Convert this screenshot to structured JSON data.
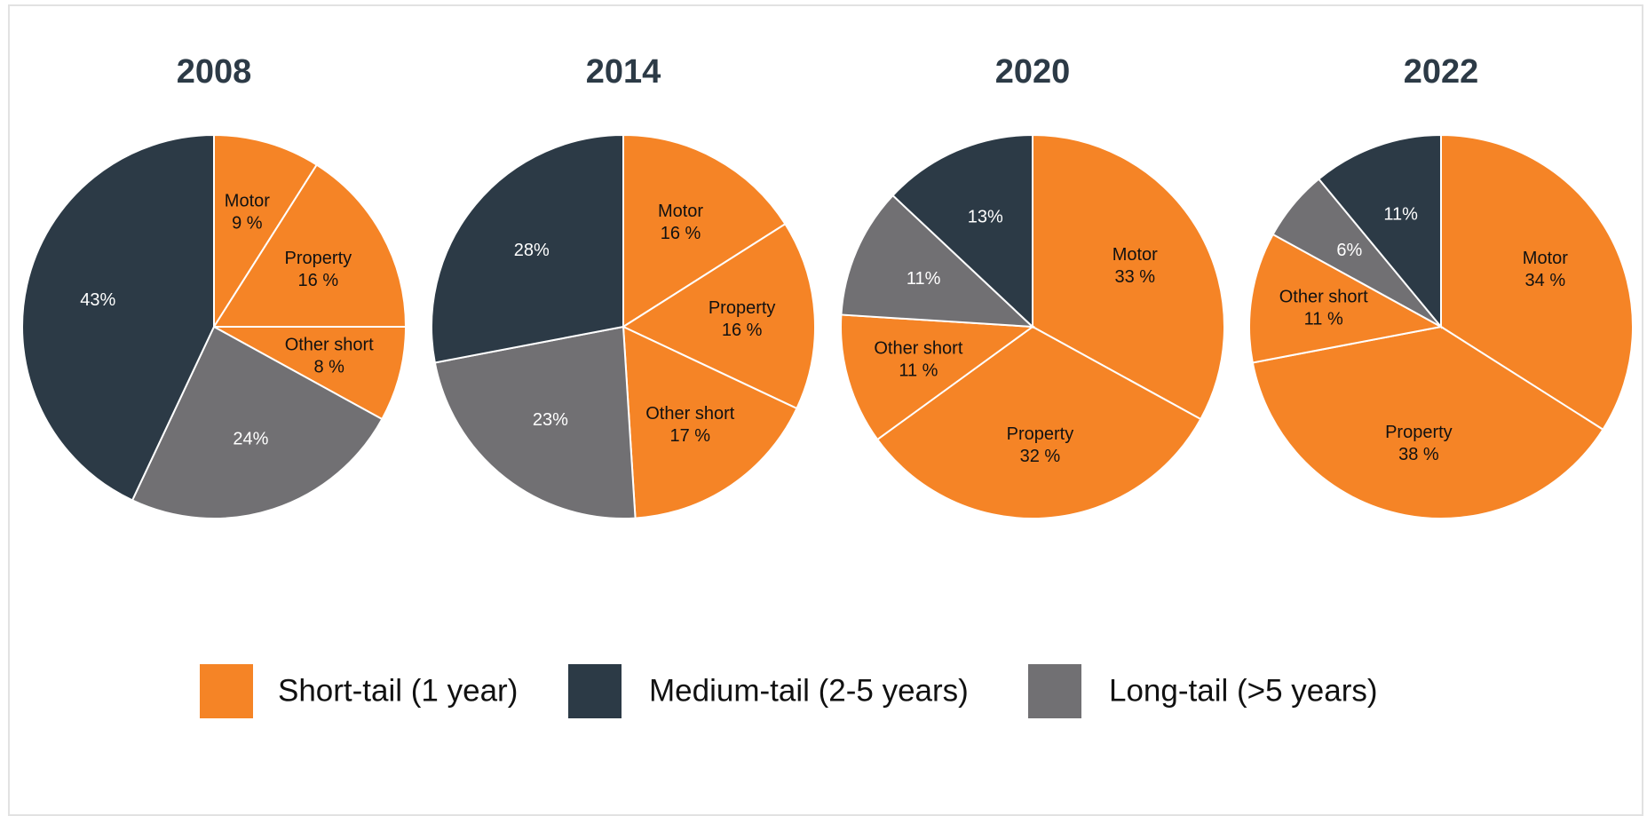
{
  "chart_data": [
    {
      "type": "pie",
      "title": "2008",
      "categories": [
        "Motor",
        "Property",
        "Other short",
        null,
        null
      ],
      "values": [
        9,
        16,
        8,
        24,
        43
      ],
      "value_labels": [
        "9 %",
        "16 %",
        "8 %",
        "24%",
        "43%"
      ],
      "colors": [
        "#f58426",
        "#f58426",
        "#f58426",
        "#717073",
        "#2c3a46"
      ]
    },
    {
      "type": "pie",
      "title": "2014",
      "categories": [
        "Motor",
        "Property",
        "Other short",
        null,
        null
      ],
      "values": [
        16,
        16,
        17,
        23,
        28
      ],
      "value_labels": [
        "16 %",
        "16 %",
        "17 %",
        "23%",
        "28%"
      ],
      "colors": [
        "#f58426",
        "#f58426",
        "#f58426",
        "#717073",
        "#2c3a46"
      ]
    },
    {
      "type": "pie",
      "title": "2020",
      "categories": [
        "Motor",
        "Property",
        "Other short",
        null,
        null
      ],
      "values": [
        33,
        32,
        11,
        11,
        13
      ],
      "value_labels": [
        "33 %",
        "32 %",
        "11 %",
        "11%",
        "13%"
      ],
      "colors": [
        "#f58426",
        "#f58426",
        "#f58426",
        "#717073",
        "#2c3a46"
      ]
    },
    {
      "type": "pie",
      "title": "2022",
      "categories": [
        "Motor",
        "Property",
        "Other short",
        null,
        null
      ],
      "values": [
        34,
        38,
        11,
        6,
        11
      ],
      "value_labels": [
        "34 %",
        "38 %",
        "11 %",
        "6%",
        "11%"
      ],
      "colors": [
        "#f58426",
        "#f58426",
        "#f58426",
        "#717073",
        "#2c3a46"
      ]
    }
  ],
  "legend": {
    "items": [
      {
        "name": "Short-tail (1 year)",
        "color": "#f58426"
      },
      {
        "name": "Medium-tail (2-5 years)",
        "color": "#2c3a46"
      },
      {
        "name": "Long-tail (>5 years)",
        "color": "#717073"
      }
    ]
  }
}
